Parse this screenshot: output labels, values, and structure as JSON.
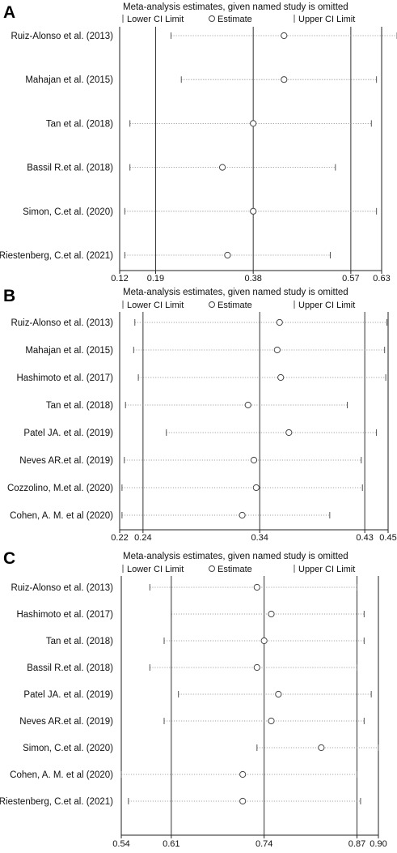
{
  "figure": {
    "legend": {
      "lower": "Lower CI Limit",
      "estimate": "Estimate",
      "upper": "Upper CI Limit"
    }
  },
  "chart_data": [
    {
      "type": "forest",
      "panel": "A",
      "title": "Meta-analysis estimates, given named study is omitted",
      "xlim": [
        0.12,
        0.63
      ],
      "ticks": [
        0.12,
        0.19,
        0.38,
        0.57,
        0.63
      ],
      "tick_labels": [
        "0.12",
        "0.19",
        "0.38",
        "0.57",
        "0.63"
      ],
      "reference_lines": [
        0.19,
        0.38,
        0.57
      ],
      "studies": [
        "Ruiz-Alonso et al. (2013)",
        "Mahajan et al.  (2015)",
        "Tan et al.  (2018)",
        "Bassil R.et al. (2018)",
        "Simon, C.et al. (2020)",
        "Riestenberg, C.et al. (2021)"
      ],
      "estimate": [
        0.44,
        0.44,
        0.38,
        0.32,
        0.38,
        0.33
      ],
      "lower": [
        0.22,
        0.24,
        0.14,
        0.14,
        0.13,
        0.13
      ],
      "upper": [
        0.66,
        0.62,
        0.61,
        0.54,
        0.62,
        0.53
      ]
    },
    {
      "type": "forest",
      "panel": "B",
      "title": "Meta-analysis estimates, given named study is omitted",
      "xlim": [
        0.22,
        0.45
      ],
      "ticks": [
        0.22,
        0.24,
        0.34,
        0.43,
        0.45
      ],
      "tick_labels": [
        "0.22",
        "0.24",
        "0.34",
        "0.43",
        "0.45"
      ],
      "reference_lines": [
        0.24,
        0.34,
        0.43
      ],
      "studies": [
        "Ruiz-Alonso et al. (2013)",
        "Mahajan et al.  (2015)",
        "Hashimoto et al. (2017)",
        "Tan et al. (2018)",
        "Patel JA. et al. (2019)",
        "Neves AR.et al. (2019)",
        "Cozzolino, M.et al. (2020)",
        "Cohen, A. M. et al (2020)"
      ],
      "estimate": [
        0.357,
        0.355,
        0.358,
        0.33,
        0.365,
        0.335,
        0.337,
        0.325
      ],
      "lower": [
        0.233,
        0.232,
        0.236,
        0.225,
        0.26,
        0.224,
        0.222,
        0.222
      ],
      "upper": [
        0.449,
        0.447,
        0.448,
        0.415,
        0.44,
        0.427,
        0.428,
        0.4
      ]
    },
    {
      "type": "forest",
      "panel": "C",
      "title": "Meta-analysis estimates, given named study is omitted",
      "xlim": [
        0.54,
        0.9
      ],
      "ticks": [
        0.54,
        0.61,
        0.74,
        0.87,
        0.9
      ],
      "tick_labels": [
        "0.54",
        "0.61",
        "0.74",
        "0.87",
        "0.90"
      ],
      "reference_lines": [
        0.61,
        0.74,
        0.87
      ],
      "studies": [
        "Ruiz-Alonso et al. (2013)",
        "Hashimoto et al. (2017)",
        "Tan et al. (2018)",
        "Bassil R.et al. (2018)",
        "Patel JA. et al. (2019)",
        "Neves AR.et al. (2019)",
        "Simon, C.et al. (2020)",
        "Cohen, A. M. et al (2020)",
        "Riestenberg, C.et al. (2021)"
      ],
      "estimate": [
        0.73,
        0.75,
        0.74,
        0.73,
        0.76,
        0.75,
        0.82,
        0.71,
        0.71
      ],
      "lower": [
        0.58,
        0.61,
        0.6,
        0.58,
        0.62,
        0.6,
        0.73,
        0.54,
        0.55
      ],
      "upper": [
        0.87,
        0.88,
        0.88,
        0.87,
        0.89,
        0.88,
        0.9,
        0.87,
        0.875
      ]
    }
  ]
}
